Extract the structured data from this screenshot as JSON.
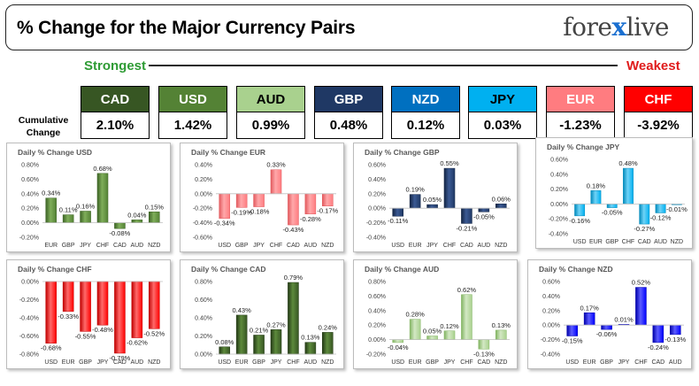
{
  "header": {
    "title": "% Change for the Major Currency Pairs",
    "logo_left": "fore",
    "logo_x": "x",
    "logo_right": "live"
  },
  "ranking": {
    "strongest_label": "Strongest",
    "weakest_label": "Weakest",
    "cumulative_label_1": "Cumulative",
    "cumulative_label_2": "Change",
    "currencies": [
      {
        "code": "CAD",
        "value": "2.10%",
        "color": "#375623",
        "text_color": "#ffffff"
      },
      {
        "code": "USD",
        "value": "1.42%",
        "color": "#548235",
        "text_color": "#ffffff"
      },
      {
        "code": "AUD",
        "value": "0.99%",
        "color": "#a9d18e",
        "text_color": "#000000"
      },
      {
        "code": "GBP",
        "value": "0.48%",
        "color": "#1f3864",
        "text_color": "#ffffff"
      },
      {
        "code": "NZD",
        "value": "0.12%",
        "color": "#0070c0",
        "text_color": "#ffffff"
      },
      {
        "code": "JPY",
        "value": "0.03%",
        "color": "#00b0f0",
        "text_color": "#000000"
      },
      {
        "code": "EUR",
        "value": "-1.23%",
        "color": "#ff7c80",
        "text_color": "#ffffff"
      },
      {
        "code": "CHF",
        "value": "-3.92%",
        "color": "#ff0000",
        "text_color": "#ffffff"
      }
    ]
  },
  "chart_data": [
    {
      "type": "bar",
      "title": "Daily % Change USD",
      "categories": [
        "EUR",
        "GBP",
        "JPY",
        "CHF",
        "CAD",
        "AUD",
        "NZD"
      ],
      "values": [
        0.34,
        0.11,
        0.16,
        0.68,
        -0.08,
        0.04,
        0.15
      ],
      "labels": [
        "0.34%",
        "0.11%",
        "0.16%",
        "0.68%",
        "-0.08%",
        "0.04%",
        "0.15%"
      ],
      "ylim": [
        -0.2,
        0.8
      ],
      "ticks": [
        -0.2,
        0,
        0.2,
        0.4,
        0.6,
        0.8
      ],
      "tick_labels": [
        "-0.20%",
        "0.00%",
        "0.20%",
        "0.40%",
        "0.60%",
        "0.80%"
      ],
      "color": "#548235",
      "light": "#7fae5a",
      "dark": "#3d6426"
    },
    {
      "type": "bar",
      "title": "Daily % Change EUR",
      "categories": [
        "USD",
        "GBP",
        "JPY",
        "CHF",
        "CAD",
        "AUD",
        "NZD"
      ],
      "values": [
        -0.34,
        -0.19,
        -0.18,
        0.33,
        -0.43,
        -0.28,
        -0.17
      ],
      "labels": [
        "-0.34%",
        "-0.19%",
        "-0.18%",
        "0.33%",
        "-0.43%",
        "-0.28%",
        "-0.17%"
      ],
      "ylim": [
        -0.6,
        0.4
      ],
      "ticks": [
        -0.6,
        -0.4,
        -0.2,
        0,
        0.2,
        0.4
      ],
      "tick_labels": [
        "-0.60%",
        "-0.40%",
        "-0.20%",
        "0.00%",
        "0.20%",
        "0.40%"
      ],
      "color": "#ff7c80",
      "light": "#ffa8aa",
      "dark": "#e25a5e"
    },
    {
      "type": "bar",
      "title": "Daily % Change GBP",
      "categories": [
        "USD",
        "EUR",
        "JPY",
        "CHF",
        "CAD",
        "AUD",
        "NZD"
      ],
      "values": [
        -0.11,
        0.19,
        0.05,
        0.55,
        -0.21,
        -0.05,
        0.06
      ],
      "labels": [
        "-0.11%",
        "0.19%",
        "0.05%",
        "0.55%",
        "-0.21%",
        "-0.05%",
        "0.06%"
      ],
      "ylim": [
        -0.4,
        0.6
      ],
      "ticks": [
        -0.4,
        -0.2,
        0,
        0.2,
        0.4,
        0.6
      ],
      "tick_labels": [
        "-0.40%",
        "-0.20%",
        "0.00%",
        "0.20%",
        "0.40%",
        "0.60%"
      ],
      "color": "#1f3864",
      "light": "#3b5a94",
      "dark": "#142544"
    },
    {
      "type": "bar",
      "title": "Daily % Change JPY",
      "categories": [
        "USD",
        "EUR",
        "GBP",
        "CHF",
        "CAD",
        "AUD",
        "NZD"
      ],
      "values": [
        -0.16,
        0.18,
        -0.05,
        0.48,
        -0.27,
        -0.12,
        -0.01
      ],
      "labels": [
        "-0.16%",
        "0.18%",
        "-0.05%",
        "0.48%",
        "-0.27%",
        "-0.12%",
        "-0.01%"
      ],
      "ylim": [
        -0.4,
        0.6
      ],
      "ticks": [
        -0.4,
        -0.2,
        0,
        0.2,
        0.4,
        0.6
      ],
      "tick_labels": [
        "-0.40%",
        "-0.20%",
        "0.00%",
        "0.20%",
        "0.40%",
        "0.60%"
      ],
      "color": "#00b0f0",
      "light": "#6fd3f7",
      "dark": "#0089bb"
    },
    {
      "type": "bar",
      "title": "Daily % Change CHF",
      "categories": [
        "USD",
        "EUR",
        "GBP",
        "JPY",
        "CAD",
        "AUD",
        "NZD"
      ],
      "values": [
        -0.68,
        -0.33,
        -0.55,
        -0.48,
        -0.79,
        -0.62,
        -0.52
      ],
      "labels": [
        "-0.68%",
        "-0.33%",
        "-0.55%",
        "-0.48%",
        "-0.79%",
        "-0.62%",
        "-0.52%"
      ],
      "ylim": [
        -0.8,
        0
      ],
      "ticks": [
        -0.8,
        -0.6,
        -0.4,
        -0.2,
        0
      ],
      "tick_labels": [
        "-0.80%",
        "-0.60%",
        "-0.40%",
        "-0.20%",
        "0.00%"
      ],
      "color": "#ff0000",
      "light": "#ff6a6a",
      "dark": "#c00000"
    },
    {
      "type": "bar",
      "title": "Daily % Change CAD",
      "categories": [
        "USD",
        "EUR",
        "GBP",
        "JPY",
        "CHF",
        "AUD",
        "NZD"
      ],
      "values": [
        0.08,
        0.43,
        0.21,
        0.27,
        0.79,
        0.13,
        0.24
      ],
      "labels": [
        "0.08%",
        "0.43%",
        "0.21%",
        "0.27%",
        "0.79%",
        "0.13%",
        "0.24%"
      ],
      "ylim": [
        0,
        0.8
      ],
      "ticks": [
        0,
        0.2,
        0.4,
        0.6,
        0.8
      ],
      "tick_labels": [
        "0.00%",
        "0.20%",
        "0.40%",
        "0.60%",
        "0.80%"
      ],
      "color": "#375623",
      "light": "#5d8a3c",
      "dark": "#243a16"
    },
    {
      "type": "bar",
      "title": "Daily % Change AUD",
      "categories": [
        "USD",
        "EUR",
        "GBP",
        "JPY",
        "CHF",
        "CAD",
        "NZD"
      ],
      "values": [
        -0.04,
        0.28,
        0.05,
        0.12,
        0.62,
        -0.13,
        0.13
      ],
      "labels": [
        "-0.04%",
        "0.28%",
        "0.05%",
        "0.12%",
        "0.62%",
        "-0.13%",
        "0.13%"
      ],
      "ylim": [
        -0.2,
        0.8
      ],
      "ticks": [
        -0.2,
        0,
        0.2,
        0.4,
        0.6,
        0.8
      ],
      "tick_labels": [
        "-0.20%",
        "0.00%",
        "0.20%",
        "0.40%",
        "0.60%",
        "0.80%"
      ],
      "color": "#a9d18e",
      "light": "#d3e8c4",
      "dark": "#82b462"
    },
    {
      "type": "bar",
      "title": "Daily % Change NZD",
      "categories": [
        "USD",
        "EUR",
        "GBP",
        "JPY",
        "CHF",
        "CAD",
        "AUD"
      ],
      "values": [
        -0.15,
        0.17,
        -0.06,
        0.01,
        0.52,
        -0.24,
        -0.13
      ],
      "labels": [
        "-0.15%",
        "0.17%",
        "-0.06%",
        "0.01%",
        "0.52%",
        "-0.24%",
        "-0.13%"
      ],
      "ylim": [
        -0.4,
        0.6
      ],
      "ticks": [
        -0.4,
        -0.2,
        0,
        0.2,
        0.4,
        0.6
      ],
      "tick_labels": [
        "-0.40%",
        "-0.20%",
        "0.00%",
        "0.20%",
        "0.40%",
        "0.60%"
      ],
      "color": "#0000ff",
      "light": "#5c5cff",
      "dark": "#0000aa"
    }
  ]
}
